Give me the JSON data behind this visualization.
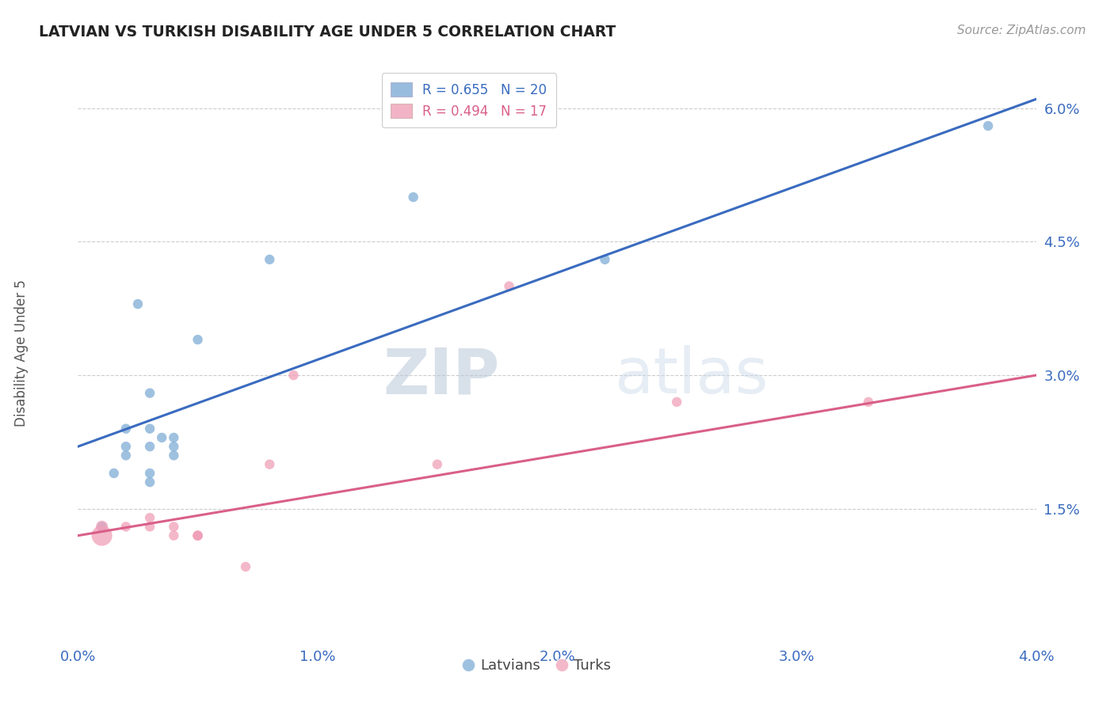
{
  "title": "LATVIAN VS TURKISH DISABILITY AGE UNDER 5 CORRELATION CHART",
  "source": "Source: ZipAtlas.com",
  "ylabel": "Disability Age Under 5",
  "xlim": [
    0.0,
    0.04
  ],
  "ylim": [
    0.0,
    0.065
  ],
  "xticks": [
    0.0,
    0.01,
    0.02,
    0.03,
    0.04
  ],
  "xtick_labels": [
    "0.0%",
    "1.0%",
    "2.0%",
    "3.0%",
    "4.0%"
  ],
  "yticks": [
    0.015,
    0.03,
    0.045,
    0.06
  ],
  "ytick_labels": [
    "1.5%",
    "3.0%",
    "4.5%",
    "6.0%"
  ],
  "blue_r": "0.655",
  "blue_n": "20",
  "pink_r": "0.494",
  "pink_n": "17",
  "blue_color": "#7facd6",
  "pink_color": "#f0a0b8",
  "blue_line_color": "#3a6bbf",
  "pink_line_color": "#d95f8a",
  "blue_line_x0": 0.0,
  "blue_line_y0": 0.022,
  "blue_line_x1": 0.04,
  "blue_line_y1": 0.061,
  "pink_line_x0": 0.0,
  "pink_line_y0": 0.012,
  "pink_line_x1": 0.04,
  "pink_line_y1": 0.03,
  "latvian_points": [
    [
      0.001,
      0.013
    ],
    [
      0.0015,
      0.019
    ],
    [
      0.002,
      0.021
    ],
    [
      0.002,
      0.024
    ],
    [
      0.002,
      0.022
    ],
    [
      0.0025,
      0.038
    ],
    [
      0.003,
      0.022
    ],
    [
      0.003,
      0.019
    ],
    [
      0.003,
      0.018
    ],
    [
      0.003,
      0.024
    ],
    [
      0.003,
      0.028
    ],
    [
      0.0035,
      0.023
    ],
    [
      0.004,
      0.022
    ],
    [
      0.004,
      0.021
    ],
    [
      0.004,
      0.023
    ],
    [
      0.005,
      0.034
    ],
    [
      0.008,
      0.043
    ],
    [
      0.014,
      0.05
    ],
    [
      0.022,
      0.043
    ],
    [
      0.038,
      0.058
    ]
  ],
  "turkish_points": [
    [
      0.001,
      0.012
    ],
    [
      0.001,
      0.013
    ],
    [
      0.002,
      0.013
    ],
    [
      0.003,
      0.014
    ],
    [
      0.003,
      0.013
    ],
    [
      0.004,
      0.012
    ],
    [
      0.004,
      0.013
    ],
    [
      0.005,
      0.012
    ],
    [
      0.005,
      0.012
    ],
    [
      0.005,
      0.012
    ],
    [
      0.007,
      0.0085
    ],
    [
      0.008,
      0.02
    ],
    [
      0.009,
      0.03
    ],
    [
      0.015,
      0.02
    ],
    [
      0.018,
      0.04
    ],
    [
      0.025,
      0.027
    ],
    [
      0.033,
      0.027
    ]
  ],
  "latvian_sizes": [
    80,
    80,
    80,
    80,
    80,
    80,
    80,
    80,
    80,
    80,
    80,
    80,
    80,
    80,
    80,
    80,
    80,
    80,
    80,
    80
  ],
  "turkish_sizes": [
    350,
    120,
    80,
    80,
    80,
    80,
    80,
    80,
    80,
    80,
    80,
    80,
    80,
    80,
    80,
    80,
    80
  ],
  "background_color": "#ffffff",
  "grid_color": "#cccccc",
  "watermark_zip": "ZIP",
  "watermark_atlas": "atlas",
  "legend_label_latvian": "Latvians",
  "legend_label_turks": "Turks"
}
